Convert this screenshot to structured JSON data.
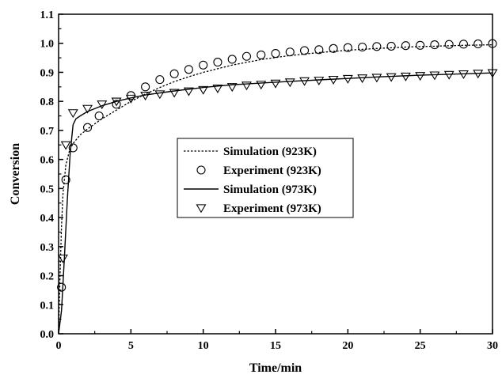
{
  "chart_data": {
    "type": "scatter",
    "xlabel": "Time/min",
    "ylabel": "Conversion",
    "xlim": [
      0,
      30
    ],
    "ylim": [
      0,
      1.1
    ],
    "xticks": [
      0,
      5,
      10,
      15,
      20,
      25,
      30
    ],
    "yticks": [
      0.0,
      0.1,
      0.2,
      0.3,
      0.4,
      0.5,
      0.6,
      0.7,
      0.8,
      0.9,
      1.0,
      1.1
    ],
    "xtick_labels": [
      "0",
      "5",
      "10",
      "15",
      "20",
      "25",
      "30"
    ],
    "ytick_labels": [
      "0.0",
      "0.1",
      "0.2",
      "0.3",
      "0.4",
      "0.5",
      "0.6",
      "0.7",
      "0.8",
      "0.9",
      "1.0",
      "1.1"
    ],
    "grid": false,
    "legend_position": "center",
    "series": [
      {
        "name": "Simulation (923K)",
        "kind": "line",
        "style": "dotted",
        "x": [
          0,
          0.1,
          0.2,
          0.3,
          0.5,
          0.75,
          1,
          1.5,
          2,
          3,
          4,
          5,
          6,
          7,
          8,
          9,
          10,
          12,
          14,
          16,
          18,
          20,
          22,
          24,
          26,
          28,
          30
        ],
        "y": [
          0,
          0.2,
          0.37,
          0.48,
          0.58,
          0.63,
          0.655,
          0.685,
          0.705,
          0.74,
          0.77,
          0.8,
          0.825,
          0.848,
          0.868,
          0.885,
          0.9,
          0.925,
          0.944,
          0.958,
          0.968,
          0.976,
          0.982,
          0.987,
          0.99,
          0.993,
          0.995
        ]
      },
      {
        "name": "Experiment (923K)",
        "kind": "marker",
        "marker": "circle",
        "x": [
          0.2,
          0.5,
          1,
          2,
          2.8,
          4,
          5,
          6,
          7,
          8,
          9,
          10,
          11,
          12,
          13,
          14,
          15,
          16,
          17,
          18,
          19,
          20,
          21,
          22,
          23,
          24,
          25,
          26,
          27,
          28,
          29,
          30
        ],
        "y": [
          0.16,
          0.53,
          0.64,
          0.71,
          0.75,
          0.79,
          0.82,
          0.85,
          0.875,
          0.895,
          0.91,
          0.925,
          0.935,
          0.945,
          0.955,
          0.96,
          0.965,
          0.97,
          0.975,
          0.978,
          0.982,
          0.985,
          0.987,
          0.989,
          0.99,
          0.992,
          0.993,
          0.995,
          0.996,
          0.997,
          0.998,
          0.999
        ]
      },
      {
        "name": "Simulation (973K)",
        "kind": "line",
        "style": "solid",
        "x": [
          0,
          0.2,
          0.4,
          0.6,
          0.8,
          1.0,
          1.2,
          1.5,
          2,
          2.5,
          3,
          4,
          5,
          6,
          8,
          10,
          12,
          15,
          18,
          20,
          22,
          25,
          28,
          30
        ],
        "y": [
          0,
          0.08,
          0.26,
          0.46,
          0.62,
          0.72,
          0.74,
          0.75,
          0.765,
          0.775,
          0.785,
          0.8,
          0.812,
          0.822,
          0.836,
          0.848,
          0.857,
          0.866,
          0.874,
          0.879,
          0.884,
          0.89,
          0.895,
          0.898
        ]
      },
      {
        "name": "Experiment (973K)",
        "kind": "marker",
        "marker": "triangle-down",
        "x": [
          0.3,
          0.5,
          1,
          2,
          3,
          4,
          5,
          6,
          7,
          8,
          9,
          10,
          11,
          12,
          13,
          14,
          15,
          16,
          17,
          18,
          19,
          20,
          21,
          22,
          23,
          24,
          25,
          26,
          27,
          28,
          29,
          30
        ],
        "y": [
          0.26,
          0.65,
          0.76,
          0.775,
          0.79,
          0.8,
          0.81,
          0.82,
          0.825,
          0.83,
          0.835,
          0.84,
          0.845,
          0.85,
          0.855,
          0.858,
          0.862,
          0.866,
          0.87,
          0.872,
          0.875,
          0.878,
          0.88,
          0.882,
          0.884,
          0.886,
          0.888,
          0.89,
          0.892,
          0.894,
          0.896,
          0.898
        ]
      }
    ]
  }
}
